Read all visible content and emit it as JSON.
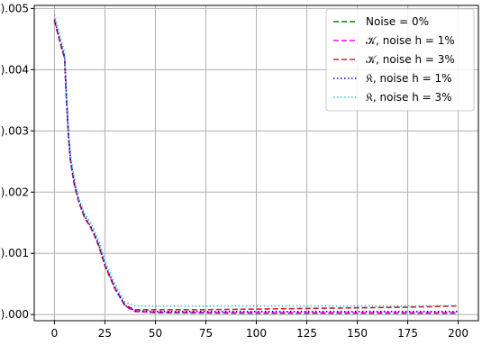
{
  "chart_data": {
    "type": "line",
    "title": "",
    "xlabel": "",
    "ylabel": "",
    "xlim": [
      -10,
      210
    ],
    "ylim": [
      -0.0001,
      0.00505
    ],
    "grid": true,
    "legend_placement": "top-right",
    "x_ticks": [
      0,
      25,
      50,
      75,
      100,
      125,
      150,
      175,
      200
    ],
    "x_tick_labels": [
      "0",
      "25",
      "50",
      "75",
      "100",
      "125",
      "150",
      "175",
      "200"
    ],
    "y_ticks": [
      0.0,
      0.001,
      0.002,
      0.003,
      0.004,
      0.005
    ],
    "y_tick_labels": [
      ").000",
      ").001",
      ").002",
      ").003",
      ").004",
      ").005"
    ],
    "series": [
      {
        "name": "Noise = 0%",
        "color": "#008000",
        "style": "dashed",
        "x": [
          0,
          2,
          4,
          5,
          6,
          7,
          8,
          10,
          12,
          15,
          18,
          20,
          22,
          25,
          30,
          35,
          40,
          50,
          75,
          100,
          125,
          150,
          175,
          200
        ],
        "y": [
          0.0048,
          0.00455,
          0.0043,
          0.0042,
          0.0035,
          0.0029,
          0.0025,
          0.0021,
          0.00185,
          0.00158,
          0.00142,
          0.00128,
          0.00112,
          0.0008,
          0.00042,
          0.00014,
          5e-05,
          3e-05,
          2.5e-05,
          2e-05,
          2e-05,
          2e-05,
          2e-05,
          2e-05
        ]
      },
      {
        "name": "𝒦, noise h  = 1%",
        "color": "#ff00ff",
        "style": "dashed",
        "x": [
          0,
          2,
          4,
          5,
          6,
          7,
          8,
          10,
          12,
          15,
          18,
          20,
          22,
          25,
          30,
          35,
          40,
          50,
          75,
          100,
          125,
          150,
          175,
          200
        ],
        "y": [
          0.0048,
          0.00455,
          0.0043,
          0.0042,
          0.0035,
          0.0029,
          0.0025,
          0.0021,
          0.00185,
          0.00158,
          0.00142,
          0.00128,
          0.00112,
          0.0008,
          0.00042,
          0.00014,
          5e-05,
          4e-05,
          3.5e-05,
          3e-05,
          3e-05,
          3e-05,
          3e-05,
          3e-05
        ]
      },
      {
        "name": "𝒦, noise h  = 3%",
        "color": "#d62020",
        "style": "dashed",
        "x": [
          0,
          2,
          4,
          5,
          6,
          7,
          8,
          10,
          12,
          15,
          18,
          20,
          22,
          25,
          30,
          35,
          40,
          50,
          75,
          100,
          125,
          150,
          175,
          200
        ],
        "y": [
          0.0048,
          0.00455,
          0.0043,
          0.0042,
          0.0035,
          0.0029,
          0.0025,
          0.0021,
          0.00185,
          0.00158,
          0.00142,
          0.00128,
          0.00112,
          0.0008,
          0.00043,
          0.00015,
          8e-05,
          8e-05,
          8e-05,
          9e-05,
          0.0001,
          0.00011,
          0.00012,
          0.00014
        ]
      },
      {
        "name": "𝔎, noise h  = 1%",
        "color": "#0000cc",
        "style": "dotted",
        "x": [
          0,
          2,
          4,
          5,
          6,
          7,
          8,
          10,
          12,
          15,
          18,
          20,
          22,
          25,
          30,
          35,
          40,
          50,
          75,
          100,
          125,
          150,
          175,
          200
        ],
        "y": [
          0.00482,
          0.00457,
          0.00432,
          0.00422,
          0.00352,
          0.00292,
          0.00252,
          0.00212,
          0.00187,
          0.0016,
          0.00144,
          0.0013,
          0.00114,
          0.00082,
          0.00044,
          0.00015,
          6e-05,
          5e-05,
          5e-05,
          5e-05,
          5e-05,
          5e-05,
          5e-05,
          5e-05
        ]
      },
      {
        "name": "𝔎, noise h  = 3%",
        "color": "#33bbee",
        "style": "dotted",
        "x": [
          0,
          2,
          4,
          5,
          6,
          7,
          8,
          10,
          12,
          15,
          18,
          20,
          22,
          25,
          30,
          35,
          40,
          50,
          75,
          100,
          125,
          150,
          175,
          200
        ],
        "y": [
          0.0049,
          0.00465,
          0.0044,
          0.0043,
          0.0036,
          0.003,
          0.0026,
          0.0022,
          0.0019,
          0.00165,
          0.0015,
          0.00136,
          0.0012,
          0.00088,
          0.0005,
          0.0002,
          0.00014,
          0.00014,
          0.00014,
          0.00014,
          0.00014,
          0.00014,
          0.00014,
          0.00015
        ]
      }
    ]
  }
}
